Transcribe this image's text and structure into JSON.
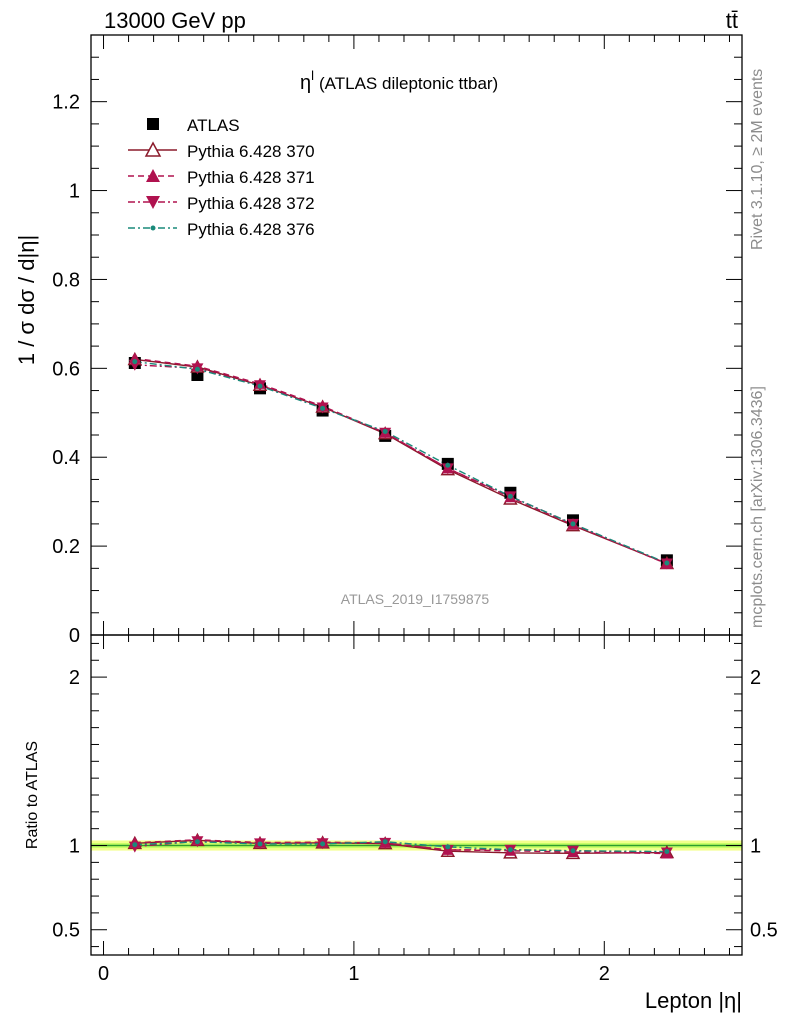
{
  "header": {
    "energy_label": "13000 GeV pp",
    "process_label": "tt̄"
  },
  "side_labels": {
    "rivet": "Rivet 3.1.10, ≥ 2M events",
    "mcplots": "mcplots.cern.ch [arXiv:1306.3436]"
  },
  "analysis_id": "ATLAS_2019_I1759875",
  "ratio_ylabel": "Ratio to ATLAS",
  "colors": {
    "data": "#000000",
    "p370": "#8b1a2b",
    "p371": "#b0124f",
    "p372": "#b0124f",
    "p376": "#1a8a7a",
    "band_outer": "#f2ff8c",
    "band_inner": "#c8ff66",
    "ratio_line": "#2e9e2e"
  },
  "chart_data": {
    "type": "line",
    "title": "η",
    "title_superscript": "l",
    "title_suffix": "(ATLAS dileptonic ttbar)",
    "xlabel": "Lepton |η|",
    "ylabel": "1 / σ  dσ / d|η|",
    "xlim": [
      -0.05,
      2.55
    ],
    "ylim": [
      0,
      1.35
    ],
    "ratio_ylim": [
      0.35,
      2.25
    ],
    "x_ticks": [
      0,
      1,
      2
    ],
    "y_ticks": [
      0,
      0.2,
      0.4,
      0.6,
      0.8,
      1,
      1.2
    ],
    "ratio_ticks": [
      0.5,
      1,
      2
    ],
    "legend_position": "top-left",
    "x": [
      0.125,
      0.375,
      0.625,
      0.875,
      1.125,
      1.375,
      1.625,
      1.875,
      2.25
    ],
    "data": {
      "name": "ATLAS",
      "values": [
        0.612,
        0.585,
        0.555,
        0.505,
        0.448,
        0.385,
        0.32,
        0.258,
        0.168
      ]
    },
    "series": [
      {
        "name": "Pythia 6.428 370",
        "marker": "triangle-open",
        "dash": "solid",
        "values": [
          0.62,
          0.603,
          0.562,
          0.513,
          0.453,
          0.372,
          0.306,
          0.246,
          0.161
        ]
      },
      {
        "name": "Pythia 6.428 371",
        "marker": "triangle-up",
        "dash": "dashed",
        "values": [
          0.622,
          0.605,
          0.565,
          0.515,
          0.455,
          0.375,
          0.31,
          0.248,
          0.16
        ]
      },
      {
        "name": "Pythia 6.428 372",
        "marker": "triangle-down",
        "dash": "dashdot",
        "values": [
          0.608,
          0.6,
          0.562,
          0.512,
          0.455,
          0.375,
          0.312,
          0.25,
          0.161
        ]
      },
      {
        "name": "Pythia 6.428 376",
        "marker": "dot",
        "dash": "dashdot",
        "values": [
          0.615,
          0.598,
          0.56,
          0.51,
          0.458,
          0.382,
          0.312,
          0.25,
          0.162
        ]
      }
    ]
  }
}
